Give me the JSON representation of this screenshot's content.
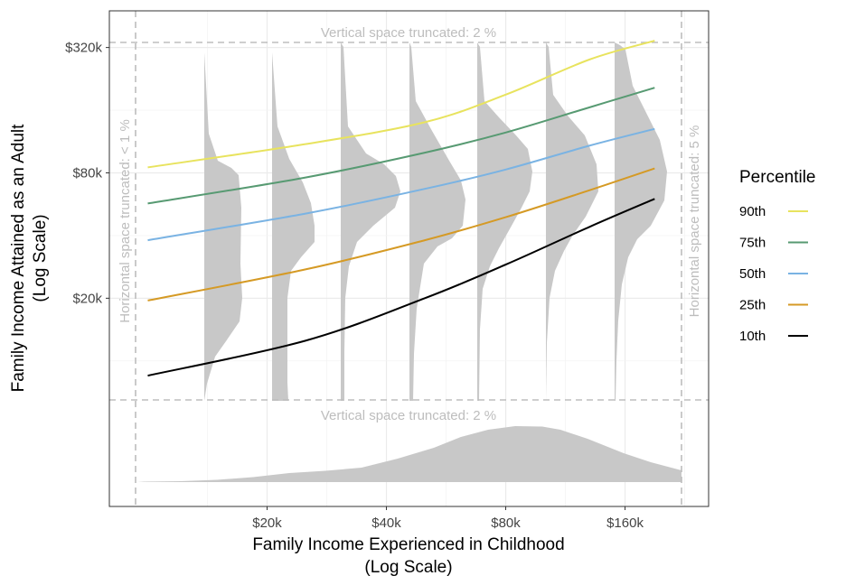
{
  "chart_data": {
    "type": "line",
    "title": "",
    "xlabel": [
      "Family Income Experienced in Childhood",
      "(Log Scale)"
    ],
    "ylabel": [
      "Family Income Attained as an Adult",
      "(Log Scale)"
    ],
    "x_scale": "log",
    "y_scale": "log",
    "x_ticks": [
      {
        "value": 20000,
        "label": "$20k"
      },
      {
        "value": 40000,
        "label": "$40k"
      },
      {
        "value": 80000,
        "label": "$80k"
      },
      {
        "value": 160000,
        "label": "$160k"
      }
    ],
    "y_ticks": [
      {
        "value": 20000,
        "label": "$20k"
      },
      {
        "value": 80000,
        "label": "$80k"
      },
      {
        "value": 320000,
        "label": "$320k"
      }
    ],
    "xlim": [
      8000,
      260000
    ],
    "ylim": [
      2000,
      480000
    ],
    "grid": true,
    "legend": {
      "title": "Percentile",
      "position": "right"
    },
    "annotations": {
      "top": "Vertical space truncated: 2 %",
      "bottom": "Vertical space truncated: 2 %",
      "left": "Horizontal space truncated: < 1 %",
      "right": "Horizontal space truncated: 5 %"
    },
    "series": [
      {
        "name": "90th",
        "color": "#e8e35e",
        "x": [
          10000,
          25000,
          50000,
          80000,
          130000,
          190000
        ],
        "y": [
          85000,
          110000,
          140000,
          190000,
          280000,
          345000
        ]
      },
      {
        "name": "75th",
        "color": "#579a72",
        "x": [
          10000,
          25000,
          50000,
          80000,
          130000,
          190000
        ],
        "y": [
          57000,
          76000,
          100000,
          125000,
          165000,
          205000
        ]
      },
      {
        "name": "50th",
        "color": "#7ab3e3",
        "x": [
          10000,
          25000,
          50000,
          80000,
          130000,
          190000
        ],
        "y": [
          38000,
          51000,
          67000,
          83000,
          108000,
          130000
        ]
      },
      {
        "name": "25th",
        "color": "#d59a25",
        "x": [
          10000,
          25000,
          50000,
          80000,
          130000,
          190000
        ],
        "y": [
          19500,
          27500,
          38000,
          49000,
          66000,
          84000
        ]
      },
      {
        "name": "10th",
        "color": "#000000",
        "x": [
          10000,
          25000,
          50000,
          80000,
          130000,
          190000
        ],
        "y": [
          8500,
          12500,
          20000,
          29000,
          44000,
          60000
        ]
      }
    ]
  }
}
